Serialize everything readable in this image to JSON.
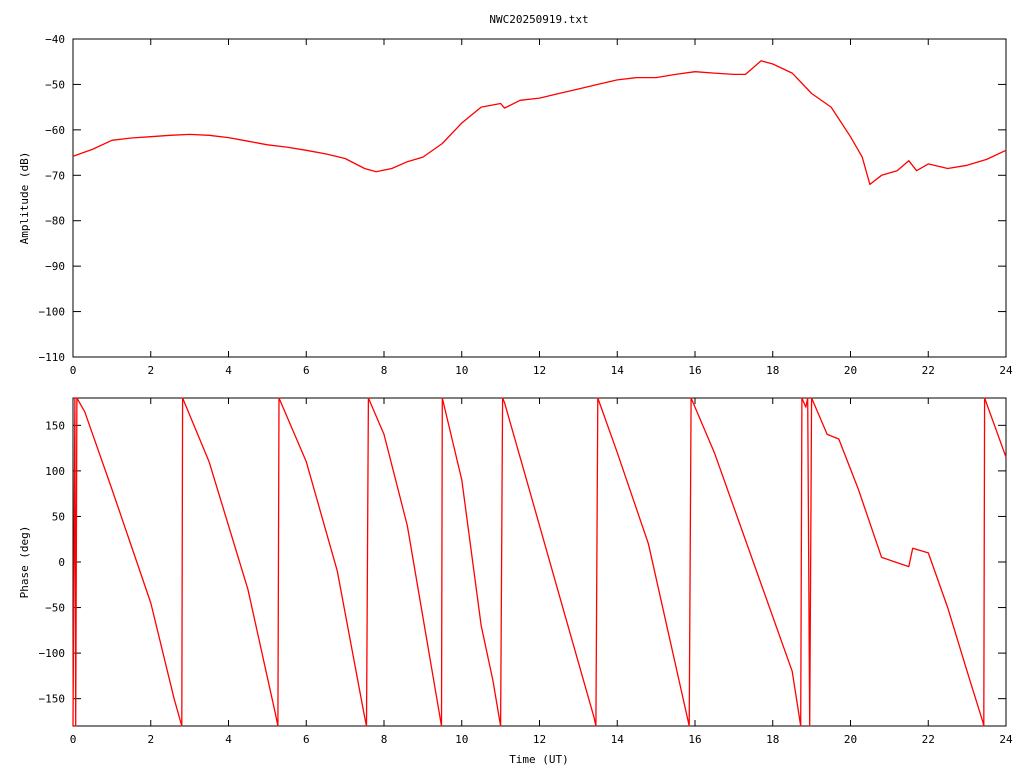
{
  "figure_title": "NWC20250919.txt",
  "colors": {
    "series": "#ff0000",
    "axes": "#000000",
    "background": "#ffffff"
  },
  "chart_data": [
    {
      "type": "line",
      "title": "NWC20250919.txt",
      "xlabel": "",
      "ylabel": "Amplitude (dB)",
      "xlim": [
        0,
        24
      ],
      "ylim": [
        -110,
        -40
      ],
      "xticks": [
        0,
        2,
        4,
        6,
        8,
        10,
        12,
        14,
        16,
        18,
        20,
        22,
        24
      ],
      "yticks": [
        -110,
        -100,
        -90,
        -80,
        -70,
        -60,
        -50,
        -40
      ],
      "xtick_labels": [
        "0",
        "2",
        "4",
        "6",
        "8",
        "10",
        "12",
        "14",
        "16",
        "18",
        "20",
        "22",
        "24"
      ],
      "ytick_labels": [
        "−110",
        "−100",
        "−90",
        "−80",
        "−70",
        "−60",
        "−50",
        "−40"
      ],
      "grid": false,
      "legend": "none",
      "series": [
        {
          "x": [
            0,
            0.5,
            1,
            1.5,
            2,
            2.5,
            3,
            3.5,
            4,
            4.5,
            5,
            5.5,
            6,
            6.5,
            7,
            7.5,
            7.8,
            8.2,
            8.6,
            9,
            9.5,
            10,
            10.5,
            11,
            11.1,
            11.5,
            12,
            12.5,
            13,
            13.5,
            14,
            14.5,
            15,
            15.5,
            16,
            16.5,
            17,
            17.3,
            17.7,
            18,
            18.5,
            19,
            19.5,
            20,
            20.3,
            20.5,
            20.8,
            21.2,
            21.5,
            21.7,
            22,
            22.5,
            23,
            23.5,
            24
          ],
          "y": [
            -65.8,
            -64.3,
            -62.3,
            -61.8,
            -61.5,
            -61.2,
            -61.0,
            -61.2,
            -61.7,
            -62.5,
            -63.3,
            -63.8,
            -64.5,
            -65.3,
            -66.3,
            -68.5,
            -69.2,
            -68.5,
            -67.0,
            -66.0,
            -63.0,
            -58.5,
            -55.0,
            -54.2,
            -55.2,
            -53.5,
            -53.0,
            -52.0,
            -51.0,
            -50.0,
            -49.0,
            -48.5,
            -48.5,
            -47.8,
            -47.2,
            -47.5,
            -47.8,
            -47.8,
            -44.8,
            -45.5,
            -47.5,
            -52.0,
            -55.0,
            -61.5,
            -66.0,
            -72.0,
            -70.0,
            -69.0,
            -66.8,
            -69.0,
            -67.5,
            -68.5,
            -67.8,
            -66.5,
            -64.5
          ]
        }
      ]
    },
    {
      "type": "line",
      "title": "",
      "xlabel": "Time (UT)",
      "ylabel": "Phase (deg)",
      "xlim": [
        0,
        24
      ],
      "ylim": [
        -180,
        180
      ],
      "xticks": [
        0,
        2,
        4,
        6,
        8,
        10,
        12,
        14,
        16,
        18,
        20,
        22,
        24
      ],
      "yticks": [
        -150,
        -100,
        -50,
        0,
        50,
        100,
        150
      ],
      "xtick_labels": [
        "0",
        "2",
        "4",
        "6",
        "8",
        "10",
        "12",
        "14",
        "16",
        "18",
        "20",
        "22",
        "24"
      ],
      "ytick_labels": [
        "−150",
        "−100",
        "−50",
        "0",
        "50",
        "100",
        "150"
      ],
      "grid": false,
      "legend": "none",
      "series": [
        {
          "x": [
            0,
            0.05,
            0.07,
            0.1,
            0.3,
            1.0,
            2.0,
            2.6,
            2.8,
            2.82,
            3.5,
            4.5,
            5.2,
            5.27,
            5.3,
            6.0,
            6.8,
            7.5,
            7.55,
            7.6,
            8.0,
            8.6,
            9.4,
            9.48,
            9.5,
            10.0,
            10.5,
            10.8,
            11.0,
            11.05,
            11.1,
            11.6,
            12.5,
            13.4,
            13.45,
            13.5,
            14.0,
            14.8,
            15.8,
            15.85,
            15.9,
            16.5,
            17.5,
            18.5,
            18.72,
            18.75,
            18.85,
            18.9,
            18.95,
            19.0,
            19.05,
            19.4,
            19.7,
            20.2,
            20.8,
            21.5,
            21.6,
            22.0,
            22.5,
            23.0,
            23.4,
            23.43,
            23.45,
            24.0
          ],
          "y": [
            -180,
            180,
            -180,
            180,
            165,
            80,
            -45,
            -150,
            -180,
            180,
            110,
            -30,
            -165,
            -180,
            180,
            110,
            -10,
            -170,
            -180,
            180,
            140,
            40,
            -160,
            -180,
            180,
            90,
            -70,
            -130,
            -180,
            180,
            175,
            100,
            -35,
            -170,
            -180,
            180,
            120,
            20,
            -170,
            -180,
            180,
            120,
            0,
            -120,
            -180,
            180,
            170,
            180,
            -180,
            180,
            175,
            140,
            135,
            80,
            5,
            -5,
            15,
            10,
            -50,
            -120,
            -175,
            -180,
            180,
            115
          ]
        }
      ]
    }
  ]
}
